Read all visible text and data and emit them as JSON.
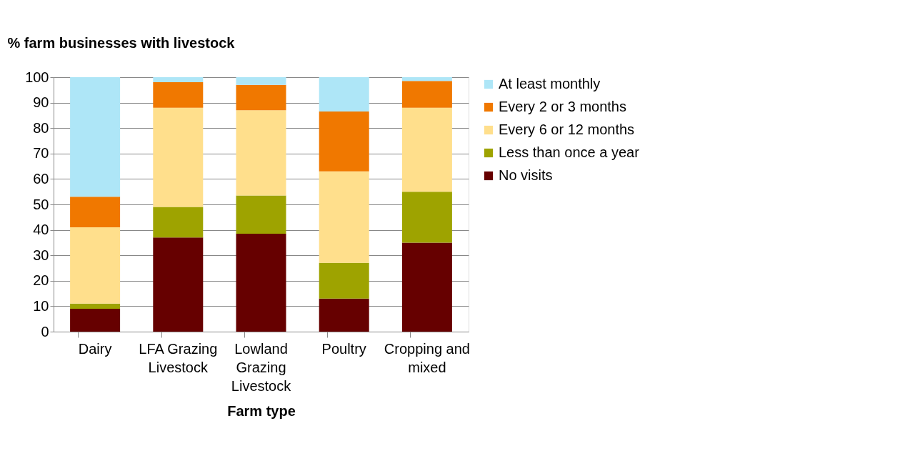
{
  "chart_data": {
    "type": "bar",
    "stacked": true,
    "xlabel": "Farm type",
    "ylabel": "% farm businesses with livestock",
    "categories": [
      "Dairy",
      "LFA Grazing Livestock",
      "Lowland Grazing Livestock",
      "Poultry",
      "Cropping and mixed"
    ],
    "series": [
      {
        "name": "No visits",
        "color": "#660000",
        "values": [
          9,
          37,
          38.5,
          13,
          35
        ]
      },
      {
        "name": "Less than once a year",
        "color": "#9ea300",
        "values": [
          2,
          12,
          15,
          14,
          20
        ]
      },
      {
        "name": "Every 6 or 12 months",
        "color": "#ffdf8c",
        "values": [
          30,
          39,
          33.5,
          36,
          33
        ]
      },
      {
        "name": "Every 2 or 3 months",
        "color": "#f07800",
        "values": [
          12,
          10,
          10,
          23.5,
          10.5
        ]
      },
      {
        "name": "At least monthly",
        "color": "#aee6f7",
        "values": [
          47,
          2,
          3,
          13.5,
          1.5
        ]
      }
    ],
    "ylim": [
      0,
      100
    ],
    "yticks": [
      0,
      10,
      20,
      30,
      40,
      50,
      60,
      70,
      80,
      90,
      100
    ],
    "grid": "y",
    "legend": "right"
  }
}
